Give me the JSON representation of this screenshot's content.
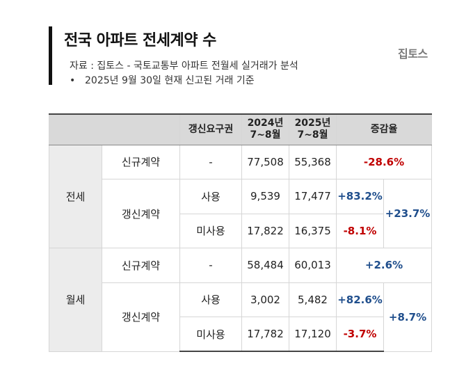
{
  "title": "전국 아파트 전세계약 수",
  "source": "자료 : 집토스 - 국토교통부 아파트 전월세 실거래가 분석",
  "note_bullet": "•",
  "note": "2025년 9월 30일 현재 신고된 거래 기준",
  "logo": "집토스",
  "table": {
    "headers": {
      "blank": "",
      "right": "갱신요구권",
      "y2024_line1": "2024년",
      "y2024_line2": "7~8월",
      "y2025_line1": "2025년",
      "y2025_line2": "7~8월",
      "change": "증감율"
    },
    "jeonse": {
      "label": "전세",
      "new": {
        "label": "신규계약",
        "right": "-",
        "v2024": "77,508",
        "v2025": "55,368",
        "change": "-28.6%"
      },
      "renew_label": "갱신계약",
      "renew_change": "+23.7%",
      "used": {
        "right": "사용",
        "v2024": "9,539",
        "v2025": "17,477",
        "change": "+83.2%"
      },
      "unused": {
        "right": "미사용",
        "v2024": "17,822",
        "v2025": "16,375",
        "change": "-8.1%"
      }
    },
    "wolse": {
      "label": "월세",
      "new": {
        "label": "신규계약",
        "right": "-",
        "v2024": "58,484",
        "v2025": "60,013",
        "change": "+2.6%"
      },
      "renew_label": "갱신계약",
      "renew_change": "+8.7%",
      "used": {
        "right": "사용",
        "v2024": "3,002",
        "v2025": "5,482",
        "change": "+82.6%"
      },
      "unused": {
        "right": "미사용",
        "v2024": "17,782",
        "v2025": "17,120",
        "change": "-3.7%"
      }
    }
  },
  "colors": {
    "negative": "#c00000",
    "positive": "#1f4e8c",
    "header_bg": "#d9d9d9",
    "group_bg": "#ececec"
  }
}
